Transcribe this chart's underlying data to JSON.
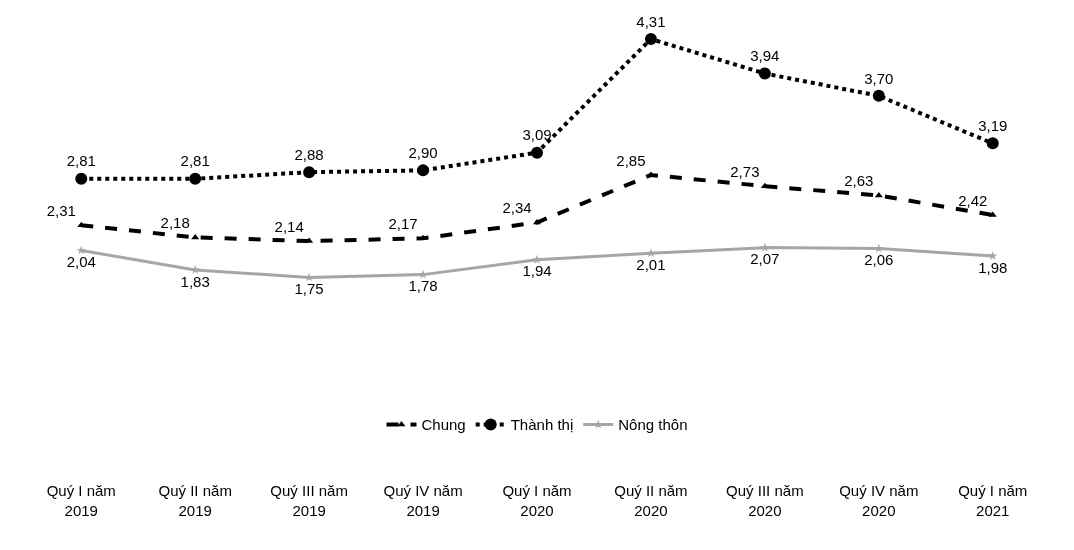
{
  "chart_data": {
    "type": "line",
    "categories": [
      "Quý I năm 2019",
      "Quý II năm 2019",
      "Quý III năm 2019",
      "Quý IV năm 2019",
      "Quý I năm 2020",
      "Quý II năm 2020",
      "Quý III năm 2020",
      "Quý IV năm 2020",
      "Quý I năm 2021"
    ],
    "series": [
      {
        "name": "Chung",
        "color": "#000000",
        "marker": "triangle",
        "line_style": "dashed",
        "values": [
          2.31,
          2.18,
          2.14,
          2.17,
          2.34,
          2.85,
          2.73,
          2.63,
          2.42
        ],
        "value_labels": [
          "2,31",
          "2,18",
          "2,14",
          "2,17",
          "2,34",
          "2,85",
          "2,73",
          "2,63",
          "2,42"
        ]
      },
      {
        "name": "Thành thị",
        "color": "#000000",
        "marker": "circle",
        "line_style": "dotted",
        "values": [
          2.81,
          2.81,
          2.88,
          2.9,
          3.09,
          4.31,
          3.94,
          3.7,
          3.19
        ],
        "value_labels": [
          "2,81",
          "2,81",
          "2,88",
          "2,90",
          "3,09",
          "4,31",
          "3,94",
          "3,70",
          "3,19"
        ]
      },
      {
        "name": "Nông thôn",
        "color": "#a6a6a6",
        "marker": "star",
        "line_style": "solid",
        "values": [
          2.04,
          1.83,
          1.75,
          1.78,
          1.94,
          2.01,
          2.07,
          2.06,
          1.98
        ],
        "value_labels": [
          "2,04",
          "1,83",
          "1,75",
          "1,78",
          "1,94",
          "2,01",
          "2,07",
          "2,06",
          "1,98"
        ]
      }
    ],
    "legend": "bottom"
  }
}
